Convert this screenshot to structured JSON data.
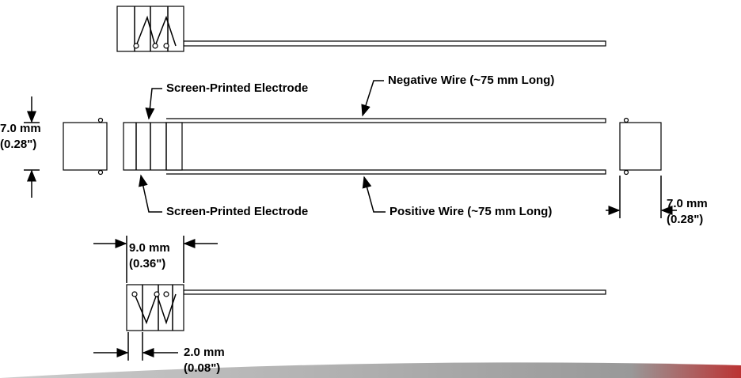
{
  "callouts": {
    "electrode_top": "Screen-Printed Electrode",
    "electrode_bottom": "Screen-Printed Electrode",
    "negative_wire": "Negative Wire (~75 mm Long)",
    "positive_wire": "Positive Wire (~75 mm Long)"
  },
  "dimensions": {
    "height_left": {
      "metric": "7.0 mm",
      "imperial": "(0.28\")"
    },
    "height_right": {
      "metric": "7.0 mm",
      "imperial": "(0.28\")"
    },
    "width": {
      "metric": "9.0 mm",
      "imperial": "(0.36\")"
    },
    "gap": {
      "metric": "2.0 mm",
      "imperial": "(0.08\")"
    }
  }
}
